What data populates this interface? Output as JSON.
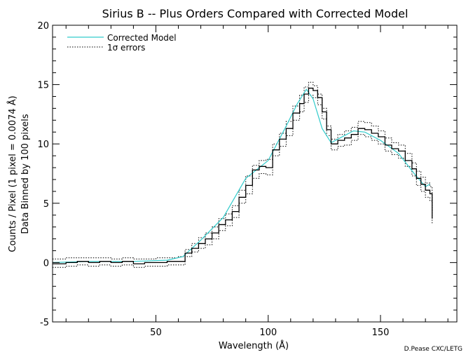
{
  "chart_data": {
    "type": "line",
    "title": "Sirius B -- Plus Orders Compared with Corrected Model",
    "xlabel": "Wavelength (Å)",
    "ylabel": "Counts / Pixel (1 pixel = 0.0074 Å)",
    "ylabel2": "Data Binned by 100 pixels",
    "credit": "D.Pease CXC/LETG",
    "xlim": [
      4,
      184
    ],
    "ylim": [
      -5,
      20
    ],
    "xticks": [
      50,
      100,
      150
    ],
    "yticks": [
      -5,
      0,
      5,
      10,
      15,
      20
    ],
    "grid": false,
    "legend_position": "top-left",
    "colors": {
      "model": "#33cccc",
      "data": "#000000",
      "errors": "#000000"
    },
    "data_series": {
      "name": "",
      "x": [
        4,
        10,
        15,
        20,
        25,
        30,
        35,
        40,
        45,
        50,
        55,
        60,
        63,
        66,
        69,
        72,
        75,
        78,
        81,
        84,
        87,
        90,
        93,
        96,
        99,
        102,
        105,
        108,
        111,
        114,
        116,
        118,
        120,
        122,
        124,
        126,
        128,
        131,
        134,
        137,
        140,
        143,
        146,
        149,
        152,
        155,
        158,
        161,
        164,
        166,
        168,
        170,
        172,
        173
      ],
      "y": [
        -0.1,
        0.0,
        0.1,
        0.0,
        0.1,
        0.0,
        0.1,
        -0.1,
        0.0,
        0.0,
        0.1,
        0.1,
        0.8,
        1.2,
        1.6,
        2.0,
        2.5,
        3.2,
        3.6,
        4.3,
        5.5,
        6.5,
        7.8,
        8.1,
        8.0,
        9.5,
        10.4,
        11.3,
        12.6,
        13.4,
        14.2,
        14.7,
        14.5,
        13.9,
        12.7,
        11.2,
        10.0,
        10.3,
        10.5,
        10.8,
        11.3,
        11.2,
        10.9,
        10.6,
        9.9,
        9.6,
        9.4,
        8.6,
        7.9,
        7.1,
        6.6,
        6.1,
        5.8,
        3.7
      ]
    },
    "model_series": {
      "name": "Corrected Model",
      "x": [
        4,
        20,
        40,
        55,
        62,
        70,
        80,
        90,
        100,
        108,
        113,
        117,
        120,
        124,
        128,
        132,
        138,
        143,
        150,
        158,
        165,
        170,
        172
      ],
      "y": [
        0.0,
        0.1,
        0.1,
        0.2,
        0.5,
        1.9,
        3.8,
        7.1,
        8.6,
        11.5,
        13.4,
        14.6,
        13.8,
        11.3,
        10.1,
        10.5,
        11.1,
        11.0,
        10.3,
        9.2,
        7.5,
        6.4,
        6.6
      ]
    },
    "error_series": {
      "name": "1σ errors",
      "upper": [
        0.3,
        0.4,
        0.4,
        0.4,
        0.4,
        0.3,
        0.4,
        0.3,
        0.3,
        0.4,
        0.4,
        0.5,
        1.1,
        1.6,
        2.1,
        2.5,
        3.0,
        3.7,
        4.1,
        4.8,
        6.1,
        7.3,
        8.2,
        8.6,
        8.7,
        10.0,
        10.9,
        11.9,
        13.2,
        14.1,
        14.8,
        15.2,
        14.9,
        14.2,
        13.0,
        11.5,
        10.4,
        10.8,
        11.1,
        11.4,
        11.9,
        11.8,
        11.5,
        11.1,
        10.5,
        10.1,
        9.9,
        9.2,
        8.4,
        7.7,
        7.2,
        6.7,
        6.4,
        4.3
      ],
      "lower": [
        -0.4,
        -0.3,
        -0.2,
        -0.3,
        -0.2,
        -0.3,
        -0.2,
        -0.4,
        -0.3,
        -0.3,
        -0.2,
        -0.2,
        0.5,
        0.9,
        1.2,
        1.5,
        2.0,
        2.7,
        3.1,
        3.8,
        5.0,
        5.8,
        7.1,
        7.5,
        7.4,
        9.0,
        9.8,
        10.7,
        12.0,
        12.7,
        13.5,
        14.1,
        13.9,
        13.3,
        12.1,
        10.7,
        9.5,
        9.8,
        9.9,
        10.3,
        10.8,
        10.6,
        10.3,
        10.0,
        9.4,
        9.1,
        8.8,
        8.1,
        7.3,
        6.5,
        6.0,
        5.5,
        5.2,
        3.2
      ]
    }
  }
}
